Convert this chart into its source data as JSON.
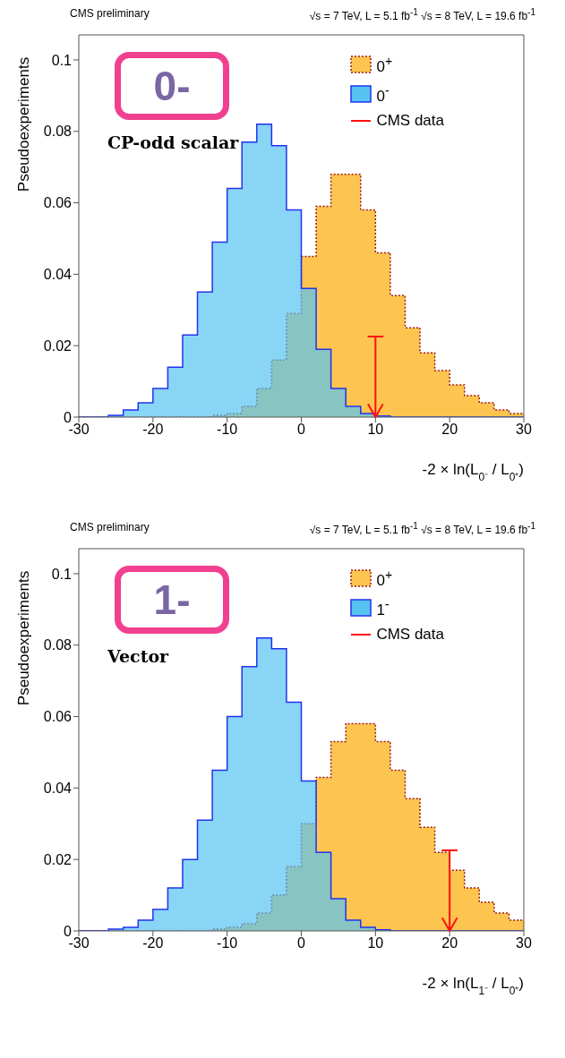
{
  "chart_data": [
    {
      "type": "histogram",
      "title": "CMS preliminary",
      "subtitle": "√s = 7 TeV, L = 5.1 fb$^{-1}$ √s = 8 TeV, L = 19.6 fb$^{-1}$",
      "xlabel": "-2 × ln(L$_{0⁻}$ / L$_{0⁺}$)",
      "ylabel": "Pseudoexperiments",
      "annotations": [
        "0-",
        "CP-odd scalar"
      ],
      "bins": [
        -30,
        -28,
        -26,
        -24,
        -22,
        -20,
        -18,
        -16,
        -14,
        -12,
        -10,
        -8,
        -6,
        -4,
        -2,
        0,
        2,
        4,
        6,
        8,
        10,
        12,
        14,
        16,
        18,
        20,
        22,
        24,
        26,
        28,
        30
      ],
      "series": [
        {
          "name": "0$^{+}$",
          "color": "#fdc54f",
          "line_style": "dotted",
          "values": [
            0,
            0,
            0,
            0,
            0,
            0,
            0,
            0,
            0,
            0.0005,
            0.001,
            0.003,
            0.008,
            0.016,
            0.029,
            0.045,
            0.059,
            0.068,
            0.068,
            0.058,
            0.046,
            0.034,
            0.025,
            0.018,
            0.013,
            0.009,
            0.006,
            0.004,
            0.002,
            0.001
          ]
        },
        {
          "name": "0$^{-}$",
          "color": "#55c3f2",
          "values": [
            0,
            0,
            0.0005,
            0.002,
            0.004,
            0.008,
            0.014,
            0.023,
            0.035,
            0.049,
            0.064,
            0.077,
            0.082,
            0.076,
            0.058,
            0.036,
            0.019,
            0.008,
            0.003,
            0.001,
            0.0003,
            0,
            0,
            0,
            0,
            0,
            0,
            0,
            0,
            0
          ]
        }
      ],
      "ref_lines": [
        {
          "axis": "x",
          "value": 10,
          "label": "CMS data",
          "color": "#ff1010"
        }
      ],
      "xlim": [
        -30,
        30
      ],
      "xticks": [
        -30,
        -20,
        -10,
        0,
        10,
        20,
        30
      ],
      "ylim": [
        0,
        0.107
      ],
      "yticks": [
        0,
        0.02,
        0.04,
        0.06,
        0.08,
        0.1
      ],
      "legend": "top right"
    },
    {
      "type": "histogram",
      "title": "CMS preliminary",
      "subtitle": "√s = 7 TeV, L = 5.1 fb$^{-1}$ √s = 8 TeV, L = 19.6 fb$^{-1}$",
      "xlabel": "-2 × ln(L$_{1⁻}$ / L$_{0⁺}$)",
      "ylabel": "Pseudoexperiments",
      "annotations": [
        "1-",
        "Vector"
      ],
      "bins": [
        -30,
        -28,
        -26,
        -24,
        -22,
        -20,
        -18,
        -16,
        -14,
        -12,
        -10,
        -8,
        -6,
        -4,
        -2,
        0,
        2,
        4,
        6,
        8,
        10,
        12,
        14,
        16,
        18,
        20,
        22,
        24,
        26,
        28,
        30
      ],
      "series": [
        {
          "name": "0$^{+}$",
          "color": "#fdc54f",
          "line_style": "dotted",
          "values": [
            0,
            0,
            0,
            0,
            0,
            0,
            0,
            0,
            0,
            0.0005,
            0.001,
            0.002,
            0.005,
            0.01,
            0.018,
            0.03,
            0.043,
            0.053,
            0.058,
            0.058,
            0.053,
            0.045,
            0.037,
            0.029,
            0.022,
            0.017,
            0.012,
            0.008,
            0.005,
            0.003
          ]
        },
        {
          "name": "1$^{-}$",
          "color": "#55c3f2",
          "values": [
            0,
            0,
            0.0005,
            0.001,
            0.003,
            0.006,
            0.012,
            0.02,
            0.031,
            0.045,
            0.06,
            0.074,
            0.082,
            0.079,
            0.064,
            0.042,
            0.022,
            0.009,
            0.003,
            0.001,
            0.0003,
            0,
            0,
            0,
            0,
            0,
            0,
            0,
            0,
            0
          ]
        }
      ],
      "ref_lines": [
        {
          "axis": "x",
          "value": 20,
          "label": "CMS data",
          "color": "#ff1010"
        }
      ],
      "xlim": [
        -30,
        30
      ],
      "xticks": [
        -30,
        -20,
        -10,
        0,
        10,
        20,
        30
      ],
      "ylim": [
        0,
        0.107
      ],
      "yticks": [
        0,
        0.02,
        0.04,
        0.06,
        0.08,
        0.1
      ],
      "legend": "top right"
    }
  ]
}
